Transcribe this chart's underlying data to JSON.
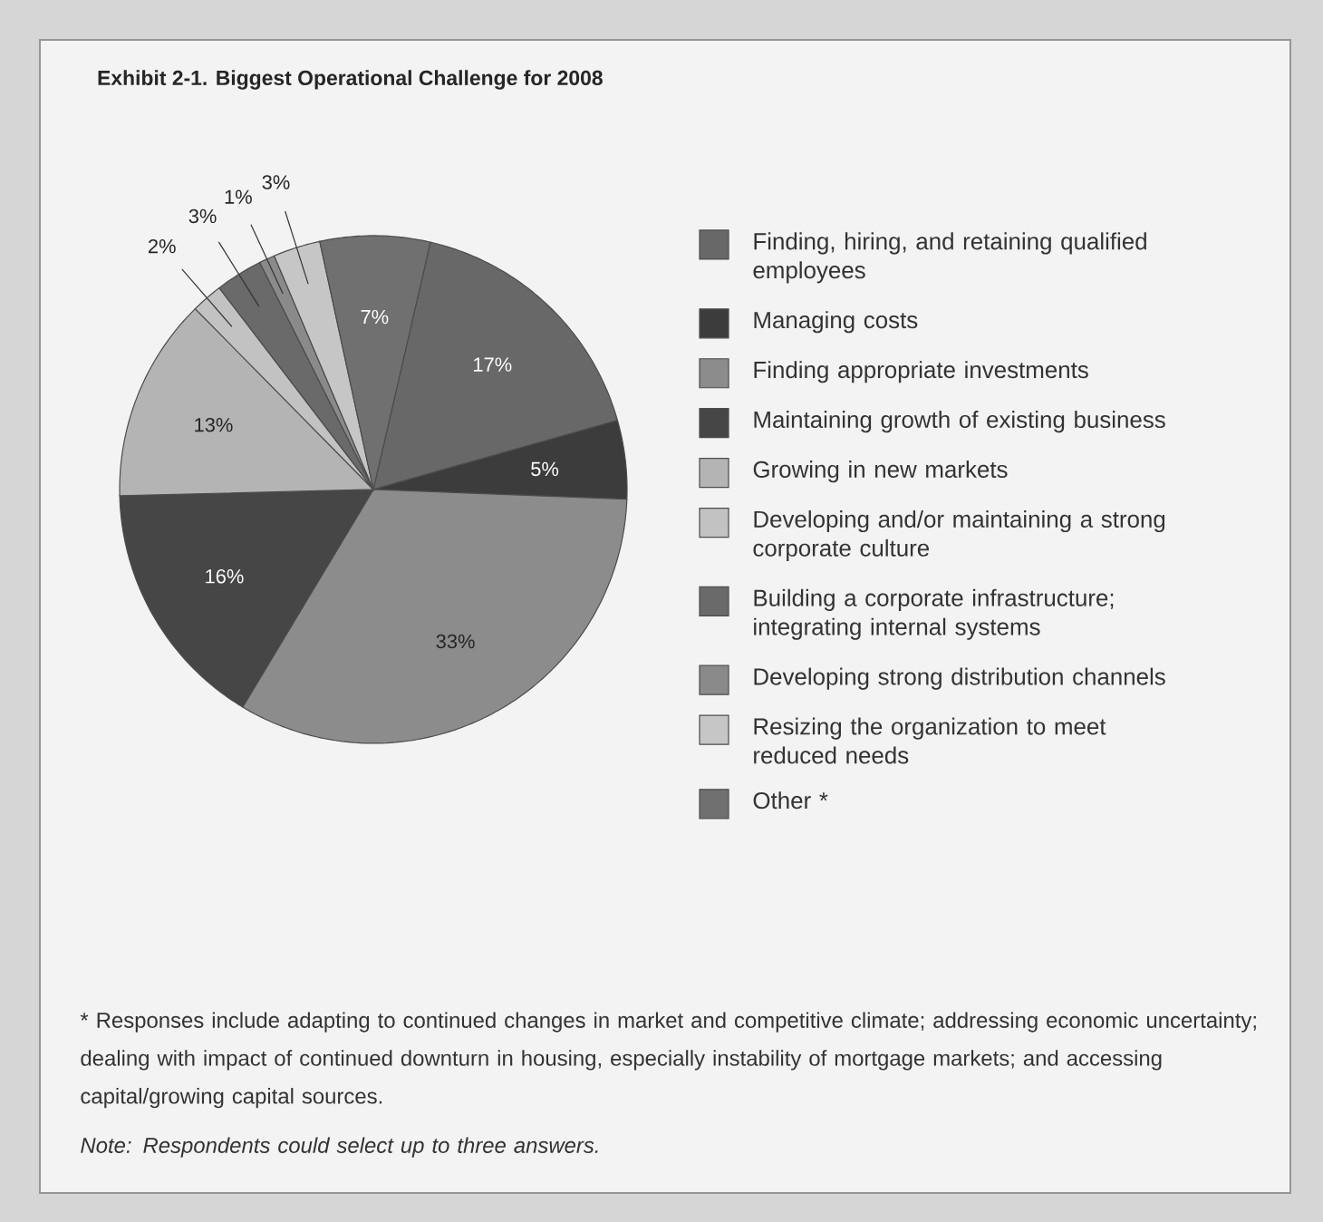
{
  "chart_data": {
    "type": "pie",
    "title": "Exhibit 2-1.  Biggest Operational Challenge for 2008",
    "categories": [
      "Finding, hiring, and retaining qualified employees",
      "Managing costs",
      "Finding appropriate investments",
      "Maintaining growth of existing business",
      "Growing in new markets",
      "Developing and/or maintaining a strong corporate culture",
      "Building a corporate infrastructure; integrating internal systems",
      "Developing strong distribution channels",
      "Resizing the organization to meet reduced needs",
      "Other *"
    ],
    "values": [
      17,
      5,
      33,
      16,
      13,
      2,
      3,
      1,
      3,
      7
    ],
    "colors": [
      "#686868",
      "#3c3c3c",
      "#8c8c8c",
      "#464646",
      "#b4b4b4",
      "#c2c2c2",
      "#6a6a6a",
      "#8a8a8a",
      "#c6c6c6",
      "#707070"
    ],
    "value_labels": [
      "17%",
      "5%",
      "33%",
      "16%",
      "13%",
      "2%",
      "3%",
      "1%",
      "3%",
      "7%"
    ],
    "legend": "right",
    "annotations": [
      "* Responses include adapting to continued changes in market and competitive climate; addressing economic uncertainty; dealing with impact of continued downturn in housing, especially instability of mortgage markets; and accessing capital/growing capital sources.",
      "Note: Respondents could select up to three answers."
    ]
  }
}
